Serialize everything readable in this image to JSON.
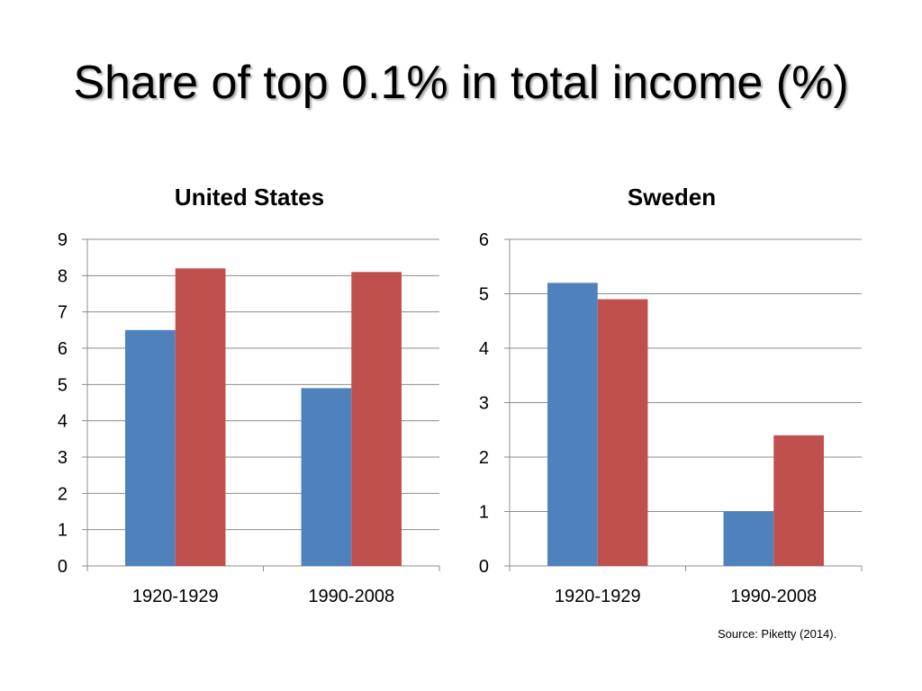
{
  "title": "Share of top 0.1% in total income (%)",
  "source": "Source: Piketty (2014).",
  "colors": {
    "series_a": "#4F81BD",
    "series_b": "#C0504D",
    "grid": "#8C8C8C",
    "axis": "#8C8C8C"
  },
  "chart_data": [
    {
      "type": "bar",
      "title": "United States",
      "categories": [
        "1920-1929",
        "1990-2008"
      ],
      "series": [
        {
          "values": [
            6.5,
            4.9
          ]
        },
        {
          "values": [
            8.2,
            8.1
          ]
        }
      ],
      "ylim": [
        0,
        9
      ],
      "yticks": [
        "0",
        "1",
        "2",
        "3",
        "4",
        "5",
        "6",
        "7",
        "8",
        "9"
      ],
      "grid": true,
      "legend": "none"
    },
    {
      "type": "bar",
      "title": "Sweden",
      "categories": [
        "1920-1929",
        "1990-2008"
      ],
      "series": [
        {
          "values": [
            5.2,
            1.0
          ]
        },
        {
          "values": [
            4.9,
            2.4
          ]
        }
      ],
      "ylim": [
        0,
        6
      ],
      "yticks": [
        "0",
        "1",
        "2",
        "3",
        "4",
        "5",
        "6"
      ],
      "grid": true,
      "legend": "none"
    }
  ]
}
